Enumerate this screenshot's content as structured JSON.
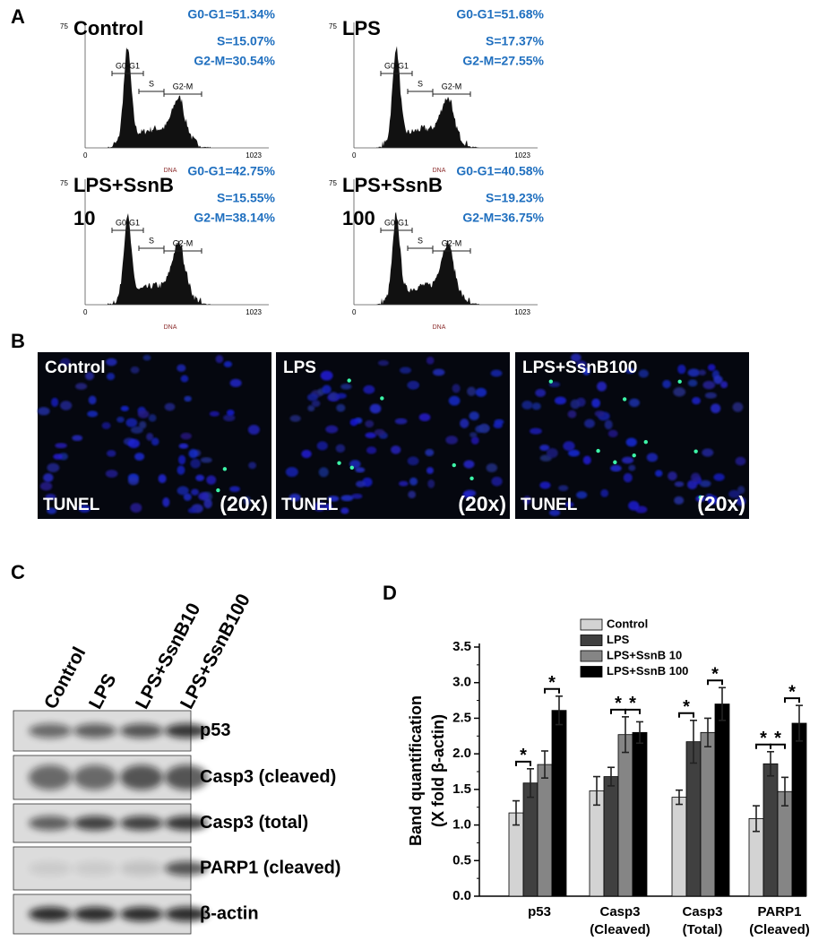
{
  "panel_a": {
    "label": "A",
    "plots": [
      {
        "title": [
          "Control"
        ],
        "stats": [
          "G0-G1=51.34%",
          "S=15.07%",
          "G2-M=30.54%"
        ],
        "y_top": "75",
        "x_min": "0",
        "x_max": "1023",
        "x_label": "DNA",
        "gates": [
          "G0-G1",
          "S",
          "G2-M"
        ]
      },
      {
        "title": [
          "LPS"
        ],
        "stats": [
          "G0-G1=51.68%",
          "S=17.37%",
          "G2-M=27.55%"
        ],
        "y_top": "75",
        "x_min": "0",
        "x_max": "1023",
        "x_label": "DNA",
        "gates": [
          "G0-G1",
          "S",
          "G2-M"
        ]
      },
      {
        "title": [
          "LPS+SsnB",
          "10"
        ],
        "stats": [
          "G0-G1=42.75%",
          "S=15.55%",
          "G2-M=38.14%"
        ],
        "y_top": "75",
        "x_min": "0",
        "x_max": "1023",
        "x_label": "DNA",
        "gates": [
          "G0-G1",
          "S",
          "G2-M"
        ]
      },
      {
        "title": [
          "LPS+SsnB",
          "100"
        ],
        "stats": [
          "G0-G1=40.58%",
          "S=19.23%",
          "G2-M=36.75%"
        ],
        "y_top": "75",
        "x_min": "0",
        "x_max": "1023",
        "x_label": "DNA",
        "gates": [
          "G0-G1",
          "S",
          "G2-M"
        ]
      }
    ]
  },
  "panel_b": {
    "label": "B",
    "images": [
      {
        "title": "Control",
        "stain": "TUNEL",
        "magnification": "(20x)"
      },
      {
        "title": "LPS",
        "stain": "TUNEL",
        "magnification": "(20x)"
      },
      {
        "title": "LPS+SsnB100",
        "stain": "TUNEL",
        "magnification": "(20x)"
      }
    ]
  },
  "panel_c": {
    "label": "C",
    "lanes": [
      "Control",
      "LPS",
      "LPS+SsnB10",
      "LPS+SsnB100"
    ],
    "blots": [
      "p53",
      "Casp3 (cleaved)",
      "Casp3 (total)",
      "PARP1 (cleaved)",
      "β-actin"
    ]
  },
  "chart_data": {
    "type": "bar",
    "panel_label": "D",
    "y_label": [
      "Band quantification",
      "(X fold β-actin)"
    ],
    "categories": [
      [
        "p53"
      ],
      [
        "Casp3",
        "(Cleaved)"
      ],
      [
        "Casp3",
        "(Total)"
      ],
      [
        "PARP1",
        "(Cleaved)"
      ]
    ],
    "series": [
      {
        "name": "Control",
        "color": "#d3d3d3",
        "values": [
          1.17,
          1.48,
          1.39,
          1.09
        ],
        "errors": [
          0.17,
          0.2,
          0.1,
          0.18
        ]
      },
      {
        "name": "LPS",
        "color": "#404040",
        "values": [
          1.59,
          1.68,
          2.17,
          1.86
        ],
        "errors": [
          0.2,
          0.13,
          0.3,
          0.17
        ]
      },
      {
        "name": "LPS+SsnB 10",
        "color": "#858585",
        "values": [
          1.85,
          2.27,
          2.3,
          1.47
        ],
        "errors": [
          0.19,
          0.25,
          0.2,
          0.2
        ]
      },
      {
        "name": "LPS+SsnB 100",
        "color": "#000000",
        "values": [
          2.61,
          2.3,
          2.7,
          2.43
        ],
        "errors": [
          0.2,
          0.15,
          0.23,
          0.25
        ]
      }
    ],
    "ylim": [
      0,
      3.5
    ],
    "yticks": [
      {
        "value": 0,
        "label": "0.0"
      },
      {
        "value": 0.5,
        "label": "0.5"
      },
      {
        "value": 1,
        "label": "1.0"
      },
      {
        "value": 1.5,
        "label": "1.5"
      },
      {
        "value": 2,
        "label": "2.0"
      },
      {
        "value": 2.5,
        "label": "2.5"
      },
      {
        "value": 3,
        "label": "3.0"
      },
      {
        "value": 3.5,
        "label": "3.5"
      }
    ],
    "significance": [
      {
        "text": "*",
        "category": 0,
        "series": [
          0,
          1
        ]
      },
      {
        "text": "*",
        "category": 0,
        "series": [
          2,
          3
        ]
      },
      {
        "text": "*",
        "category": 1,
        "series": [
          1,
          2
        ]
      },
      {
        "text": "*",
        "category": 1,
        "series": [
          2,
          3
        ]
      },
      {
        "text": "*",
        "category": 2,
        "series": [
          0,
          1
        ]
      },
      {
        "text": "*",
        "category": 2,
        "series": [
          2,
          3
        ]
      },
      {
        "text": "*",
        "category": 3,
        "series": [
          0,
          1
        ]
      },
      {
        "text": "*",
        "category": 3,
        "series": [
          1,
          2
        ]
      },
      {
        "text": "*",
        "category": 3,
        "series": [
          2,
          3
        ]
      }
    ]
  }
}
